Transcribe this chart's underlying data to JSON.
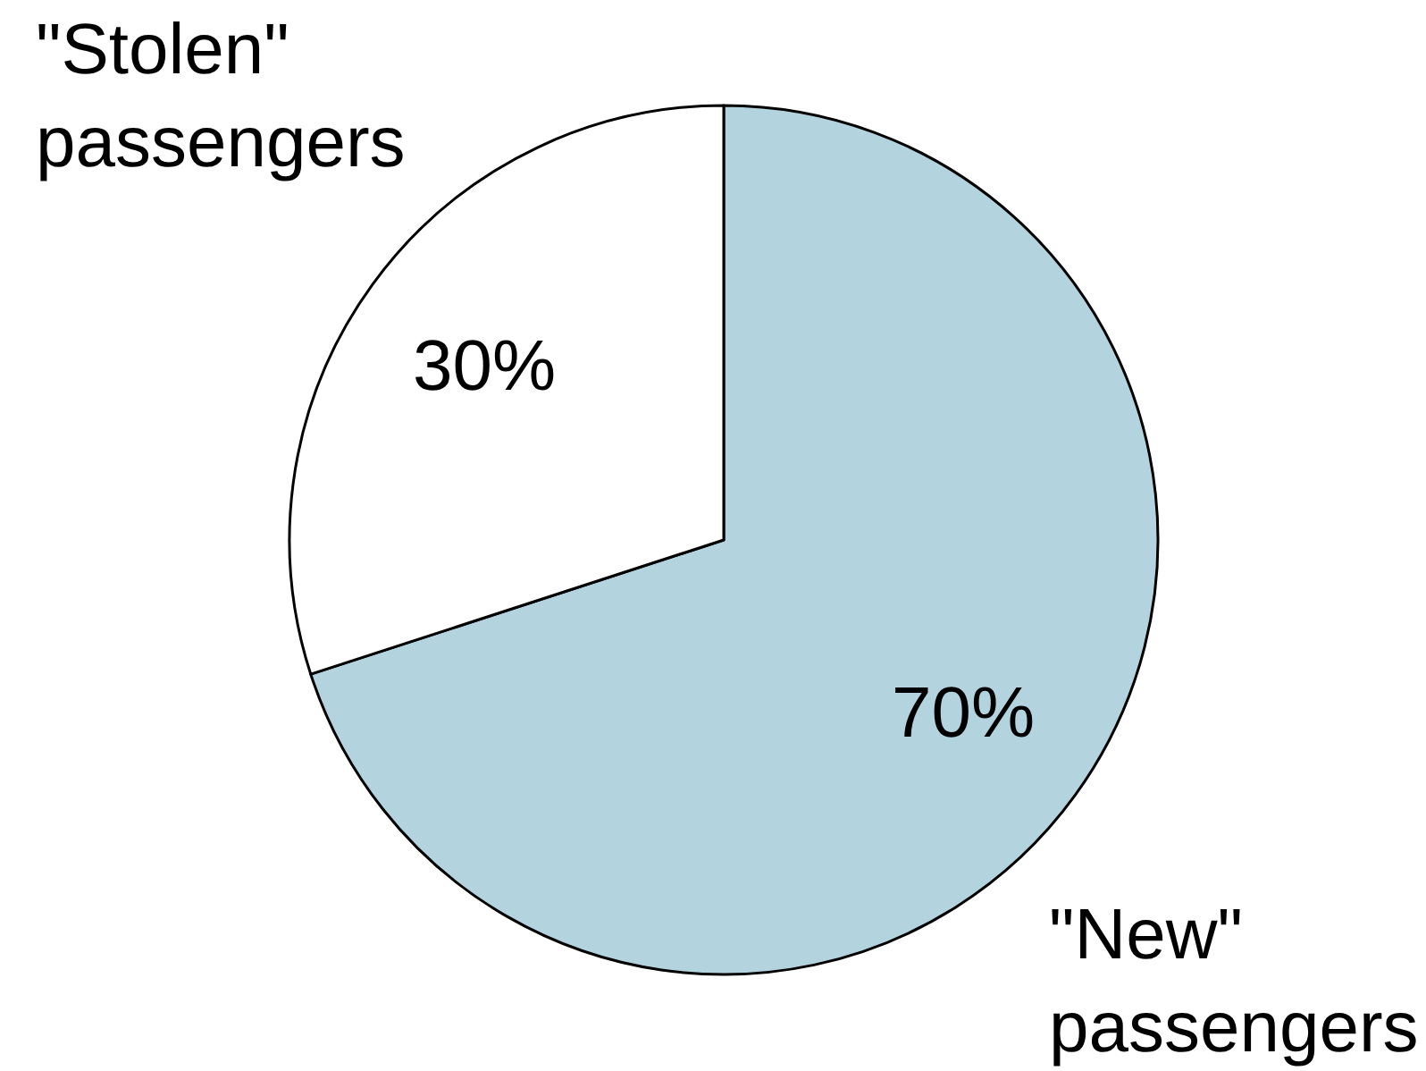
{
  "chart_data": {
    "type": "pie",
    "categories": [
      "\"New\" passengers",
      "\"Stolen\" passengers"
    ],
    "values": [
      70,
      30
    ],
    "colors": [
      "#b3d3de",
      "#ffffff"
    ],
    "value_labels": [
      "70%",
      "30%"
    ],
    "legend": false
  }
}
